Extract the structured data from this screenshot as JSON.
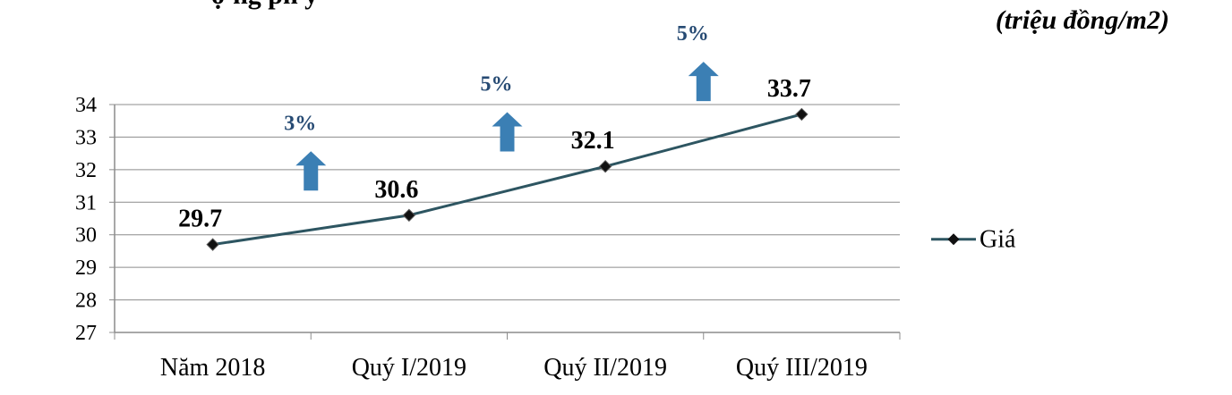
{
  "unit_label": "(triệu đồng/m2)",
  "title_fragment": "ợ ng ph y",
  "chart_data": {
    "type": "line",
    "categories": [
      "Năm 2018",
      "Quý I/2019",
      "Quý II/2019",
      "Quý III/2019"
    ],
    "series": [
      {
        "name": "Giá",
        "values": [
          29.7,
          30.6,
          32.1,
          33.7
        ],
        "color": "#2d5561"
      }
    ],
    "data_labels": [
      "29.7",
      "30.6",
      "32.1",
      "33.7"
    ],
    "ylim": [
      27,
      34
    ],
    "y_ticks": [
      27,
      28,
      29,
      30,
      31,
      32,
      33,
      34
    ],
    "grid": true,
    "legend_position": "right",
    "growth_annotations": [
      {
        "label": "3%",
        "between": [
          0,
          1
        ],
        "color": "#3b7fb4",
        "label_color": "#264a73"
      },
      {
        "label": "5%",
        "between": [
          1,
          2
        ],
        "color": "#3b7fb4",
        "label_color": "#264a73"
      },
      {
        "label": "5%",
        "between": [
          2,
          3
        ],
        "color": "#3b7fb4",
        "label_color": "#264a73"
      }
    ]
  }
}
